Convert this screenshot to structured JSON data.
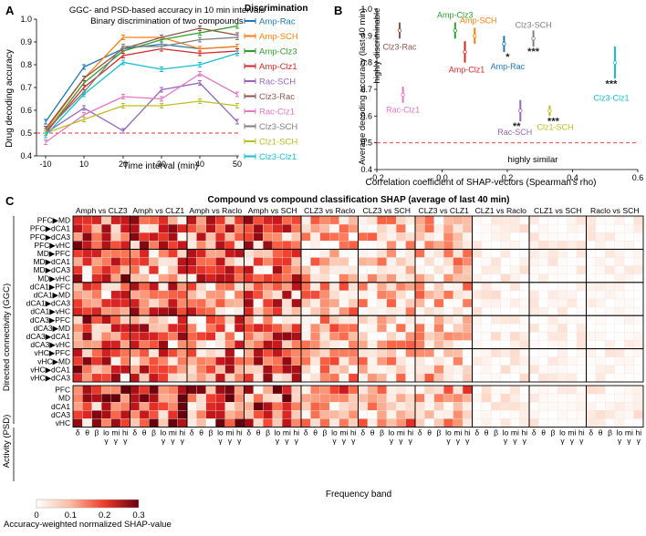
{
  "panel_a": {
    "letter": "A",
    "chart_data": {
      "type": "line",
      "title": "GGC- and PSD-based accuracy in 10 min intervals",
      "subtitle": "Binary discrimination of two compounds",
      "xlabel": "Time interval (min)",
      "ylabel": "Drug decoding accuracy",
      "x": [
        -10,
        10,
        20,
        30,
        40,
        50
      ],
      "xticks": [
        "-10",
        "10",
        "20",
        "30",
        "40",
        "50"
      ],
      "ylim": [
        0.4,
        1.0
      ],
      "yticks": [
        "0.4",
        "0.5",
        "0.6",
        "0.7",
        "0.8",
        "0.9",
        "1.0"
      ],
      "chance_level": 0.5,
      "legend_title": "Discrimination",
      "series": [
        {
          "name": "Amp-Rac",
          "color": "#1f77b4",
          "values": [
            0.55,
            0.79,
            0.87,
            0.89,
            0.87,
            0.88
          ]
        },
        {
          "name": "Amp-SCH",
          "color": "#ff7f0e",
          "values": [
            0.51,
            0.74,
            0.92,
            0.92,
            0.87,
            0.88
          ]
        },
        {
          "name": "Amp-Clz3",
          "color": "#2ca02c",
          "values": [
            0.5,
            0.72,
            0.86,
            0.91,
            0.94,
            0.97
          ]
        },
        {
          "name": "Amp-Clz1",
          "color": "#d62728",
          "values": [
            0.5,
            0.7,
            0.84,
            0.87,
            0.85,
            0.86
          ]
        },
        {
          "name": "Rac-SCH",
          "color": "#9467bd",
          "values": [
            0.5,
            0.61,
            0.51,
            0.69,
            0.72,
            0.55
          ]
        },
        {
          "name": "Clz3-Rac",
          "color": "#8c564b",
          "values": [
            0.52,
            0.74,
            0.87,
            0.92,
            0.96,
            0.93
          ]
        },
        {
          "name": "Rac-Clz1",
          "color": "#e377c2",
          "values": [
            0.46,
            0.58,
            0.66,
            0.65,
            0.76,
            0.67
          ]
        },
        {
          "name": "Clz3-SCH",
          "color": "#7f7f7f",
          "values": [
            0.51,
            0.68,
            0.88,
            0.88,
            0.91,
            0.92
          ]
        },
        {
          "name": "Clz1-SCH",
          "color": "#bcbd22",
          "values": [
            0.5,
            0.56,
            0.62,
            0.62,
            0.64,
            0.62
          ]
        },
        {
          "name": "Clz3-Clz1",
          "color": "#17becf",
          "values": [
            0.49,
            0.67,
            0.81,
            0.78,
            0.8,
            0.85
          ]
        }
      ]
    }
  },
  "panel_b": {
    "letter": "B",
    "chart_data": {
      "type": "scatter",
      "xlabel": "Correlation coefficient of SHAP-vectors (Spearman's rho)",
      "ylabel": "Average decoding accuracy (last 40 min)",
      "xlim": [
        -0.2,
        0.6
      ],
      "ylim": [
        0.4,
        1.0
      ],
      "xticks": [
        "-0.2",
        "0.0",
        "0.2",
        "0.4",
        "0.6"
      ],
      "yticks": [
        "0.4",
        "0.5",
        "0.6",
        "0.7",
        "0.8",
        "0.9",
        "1.0"
      ],
      "chance_level": 0.5,
      "annotation_top": "highly discriminable",
      "annotation_bottom": "highly similar",
      "points": [
        {
          "name": "Clz3-Rac",
          "color": "#8c564b",
          "x": -0.13,
          "y": 0.92,
          "err": 0.03,
          "sig": ""
        },
        {
          "name": "Amp-Clz3",
          "color": "#2ca02c",
          "x": 0.04,
          "y": 0.92,
          "err": 0.03,
          "sig": ""
        },
        {
          "name": "Amp-SCH",
          "color": "#ff7f0e",
          "x": 0.1,
          "y": 0.9,
          "err": 0.03,
          "sig": ""
        },
        {
          "name": "Amp-Clz1",
          "color": "#d62728",
          "x": 0.07,
          "y": 0.84,
          "err": 0.04,
          "sig": ""
        },
        {
          "name": "Amp-Rac",
          "color": "#1f77b4",
          "x": 0.19,
          "y": 0.87,
          "err": 0.03,
          "sig": "*"
        },
        {
          "name": "Clz3-SCH",
          "color": "#7f7f7f",
          "x": 0.28,
          "y": 0.89,
          "err": 0.03,
          "sig": "***"
        },
        {
          "name": "Rac-Clz1",
          "color": "#e377c2",
          "x": -0.12,
          "y": 0.68,
          "err": 0.03,
          "sig": ""
        },
        {
          "name": "Rac-SCH",
          "color": "#9467bd",
          "x": 0.24,
          "y": 0.62,
          "err": 0.04,
          "sig": "**"
        },
        {
          "name": "Clz1-SCH",
          "color": "#bcbd22",
          "x": 0.33,
          "y": 0.62,
          "err": 0.02,
          "sig": "***"
        },
        {
          "name": "Clz3-Clz1",
          "color": "#17becf",
          "x": 0.53,
          "y": 0.8,
          "err": 0.06,
          "sig": "***"
        }
      ]
    }
  },
  "panel_c": {
    "letter": "C",
    "chart_data": {
      "type": "heatmap",
      "title": "Compound vs compound classification SHAP (average of last 40 min)",
      "xlabel": "Frequency band",
      "colorbar_label": "Accuracy-weighted normalized SHAP-value",
      "colorbar_ticks": [
        "0",
        "0.1",
        "0.2",
        "0.3"
      ],
      "clim": [
        0,
        0.3
      ],
      "comparisons": [
        "Amph vs CLZ3",
        "Amph vs CLZ1",
        "Amph vs Raclo",
        "Amph vs SCH",
        "CLZ3 vs Raclo",
        "CLZ3 vs SCH",
        "CLZ3 vs CLZ1",
        "CLZ1 vs Raclo",
        "CLZ1 vs SCH",
        "Raclo vs SCH"
      ],
      "bands": [
        "δ",
        "θ",
        "β",
        "lo γ",
        "mi γ",
        "hi γ"
      ],
      "band_top": [
        "δ",
        "θ",
        "β",
        "lo",
        "mi",
        "hi"
      ],
      "band_bottom": [
        "",
        "",
        "",
        "γ",
        "γ",
        "γ"
      ],
      "group_labels": [
        "Directed connectivity (GGC)",
        "Activity (PSD)"
      ],
      "features": [
        "PFC▶MD",
        "PFC▶dCA1",
        "PFC▶dCA3",
        "PFC▶vHC",
        "MD▶PFC",
        "MD▶dCA1",
        "MD▶dCA3",
        "MD▶vHC",
        "dCA1▶PFC",
        "dCA1▶MD",
        "dCA1▶dCA3",
        "dCA1▶vHC",
        "dCA3▶PFC",
        "dCA3▶MD",
        "dCA3▶dCA1",
        "dCA3▶vHC",
        "vHC▶PFC",
        "vHC▶MD",
        "vHC▶dCA1",
        "vHC▶dCA3",
        "PFC",
        "MD",
        "dCA1",
        "dCA3",
        "vHC"
      ],
      "comparison_strength": [
        1.0,
        0.95,
        0.9,
        0.95,
        0.6,
        0.55,
        0.55,
        0.15,
        0.12,
        0.12
      ]
    }
  }
}
